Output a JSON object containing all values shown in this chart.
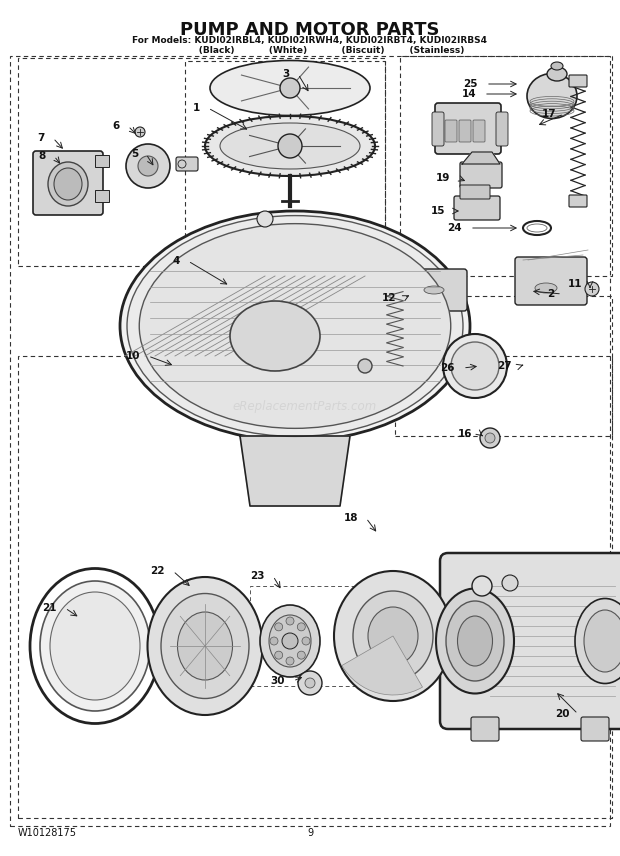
{
  "title": "PUMP AND MOTOR PARTS",
  "subtitle_line1": "For Models: KUDI02IRBL4, KUDI02IRWH4, KUDI02IRBT4, KUDI02IRBS4",
  "subtitle_line2": "              (Black)           (White)           (Biscuit)        (Stainless)",
  "footer_left": "W10128175",
  "footer_center": "9",
  "bg_color": "#ffffff",
  "line_color": "#222222",
  "text_color": "#111111",
  "watermark": "eReplacementParts.com"
}
